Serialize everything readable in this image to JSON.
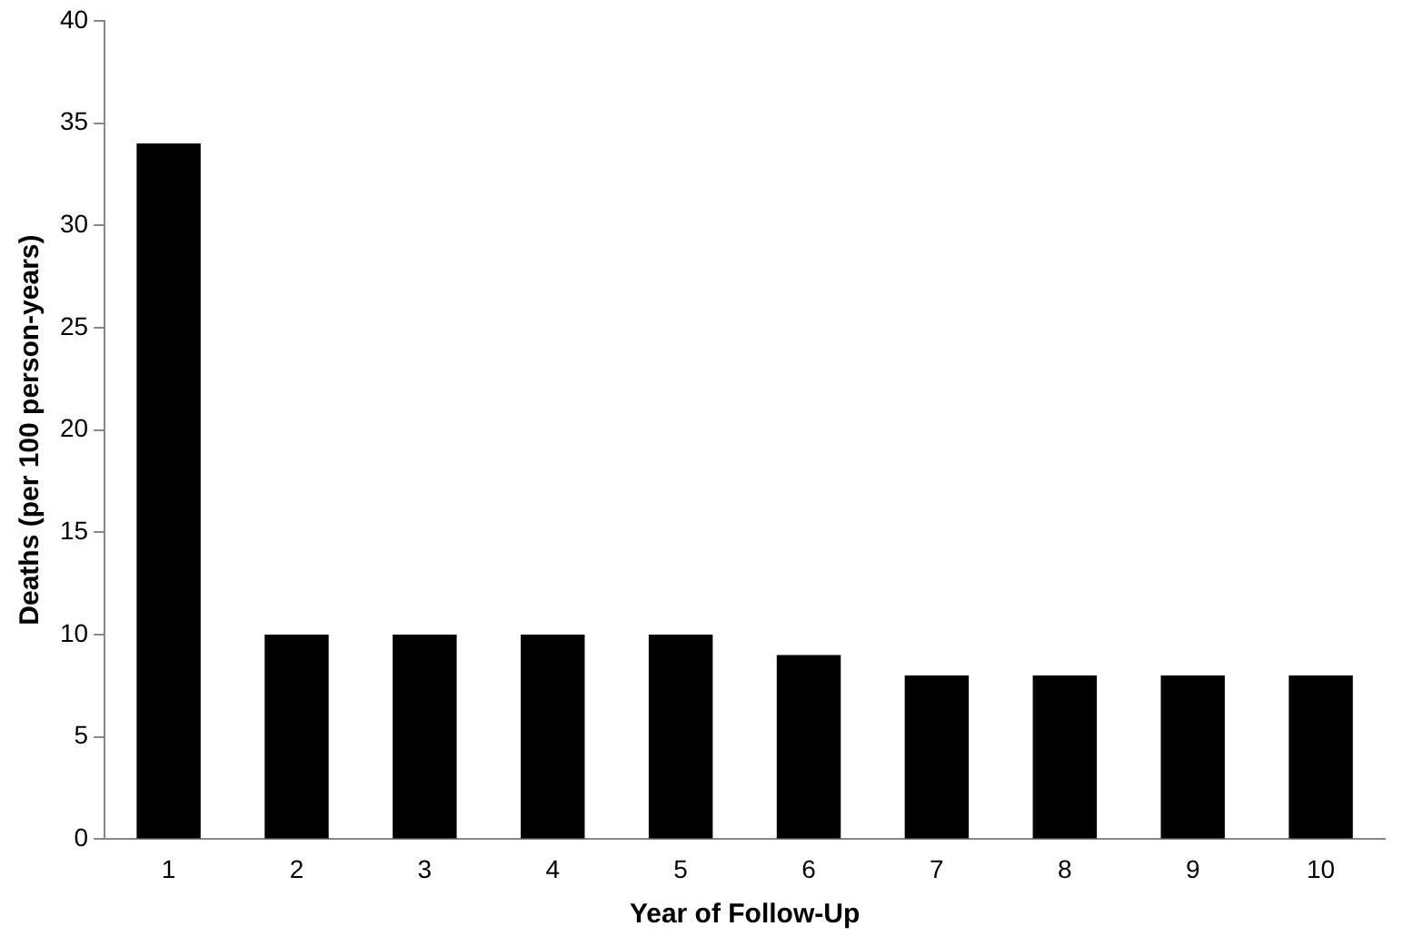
{
  "chart_data": {
    "type": "bar",
    "xlabel": "Year of Follow-Up",
    "ylabel": "Deaths (per 100 person-years)",
    "categories": [
      "1",
      "2",
      "3",
      "4",
      "5",
      "6",
      "7",
      "8",
      "9",
      "10"
    ],
    "values": [
      34,
      10,
      10,
      10,
      10,
      9,
      8,
      8,
      8,
      8
    ],
    "color": "#000000",
    "ylim": [
      0,
      40
    ],
    "yticks": [
      0,
      5,
      10,
      15,
      20,
      25,
      30,
      35,
      40
    ],
    "grid": false,
    "legend": false
  }
}
